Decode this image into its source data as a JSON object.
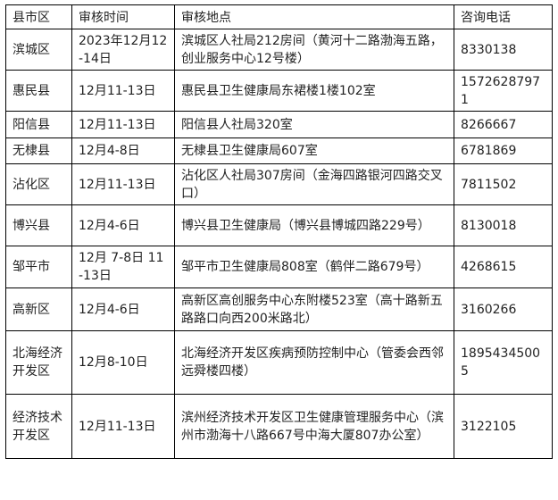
{
  "table": {
    "header": [
      "县市区",
      "审核时间",
      "审核地点",
      "咨询电话"
    ],
    "rows": [
      [
        "滨城区",
        "2023年12月12-14日",
        "滨城区人社局212房间（黄河十二路渤海五路，创业服务中心12号楼）",
        "8330138"
      ],
      [
        "惠民县",
        "12月11-13日",
        "惠民县卫生健康局东裙楼1楼102室",
        "15726287971"
      ],
      [
        "阳信县",
        "12月11-13日",
        "阳信县人社局320室",
        "8266667"
      ],
      [
        "无棣县",
        "12月4-8日",
        "无棣县卫生健康局607室",
        "6781869"
      ],
      [
        "沾化区",
        "12月11-13日",
        "沾化区人社局307房间（金海四路银河四路交叉口）",
        "7811502"
      ],
      [
        "博兴县",
        "12月4-6日",
        "博兴县卫生健康局（博兴县博城四路229号）",
        "8130018"
      ],
      [
        "邹平市",
        "12月 7-8日 11-13日",
        "邹平市卫生健康局808室（鹤伴二路679号）",
        "4268615"
      ],
      [
        "高新区",
        "12月4-6日",
        "高新区高创服务中心东附楼523室（高十路新五路路口向西200米路北）",
        "3160266"
      ],
      [
        "北海经济开发区",
        "12月8-10日",
        "北海经济开发区疾病预防控制中心（管委会西邻远舜楼四楼）",
        "18954345005"
      ],
      [
        "经济技术开发区",
        "12月11-13日",
        "滨州经济技术开发区卫生健康管理服务中心（滨州市渤海十八路667号中海大厦807办公室）",
        "3122105"
      ]
    ]
  }
}
